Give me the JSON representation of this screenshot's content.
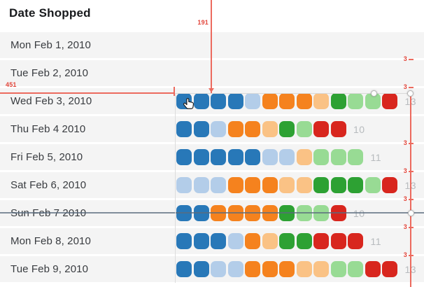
{
  "header": {
    "title": "Date Shopped"
  },
  "colors": {
    "dark_blue": "#2878b8",
    "light_blue": "#b3cde9",
    "orange": "#f5821e",
    "light_orange": "#fac285",
    "green": "#2da133",
    "light_green": "#98db94",
    "red": "#d8261e",
    "row_bg": "#f4f4f4",
    "count_text": "#b7bbbe",
    "overlay_red": "#ec6a5e",
    "strike_line": "#5a6b7d"
  },
  "rows": [
    {
      "date": "Mon Feb 1, 2010",
      "squares": [],
      "count": "",
      "struck": false
    },
    {
      "date": "Tue Feb 2, 2010",
      "squares": [],
      "count": "",
      "struck": false
    },
    {
      "date": "Wed Feb 3, 2010",
      "squares": [
        "dark_blue",
        "dark_blue",
        "dark_blue",
        "dark_blue",
        "light_blue",
        "orange",
        "orange",
        "orange",
        "light_orange",
        "green",
        "light_green",
        "light_green",
        "red"
      ],
      "count": "13",
      "struck": false
    },
    {
      "date": "Thu Feb 4 2010",
      "squares": [
        "dark_blue",
        "dark_blue",
        "light_blue",
        "orange",
        "orange",
        "light_orange",
        "green",
        "light_green",
        "red",
        "red"
      ],
      "count": "10",
      "struck": false
    },
    {
      "date": "Fri Feb 5, 2010",
      "squares": [
        "dark_blue",
        "dark_blue",
        "dark_blue",
        "dark_blue",
        "dark_blue",
        "light_blue",
        "light_blue",
        "light_orange",
        "light_green",
        "light_green",
        "light_green"
      ],
      "count": "11",
      "struck": false
    },
    {
      "date": "Sat Feb 6, 2010",
      "squares": [
        "light_blue",
        "light_blue",
        "light_blue",
        "orange",
        "orange",
        "orange",
        "light_orange",
        "light_orange",
        "green",
        "green",
        "green",
        "light_green",
        "red"
      ],
      "count": "13",
      "struck": false
    },
    {
      "date": "Sun Feb 7 2010",
      "squares": [
        "dark_blue",
        "dark_blue",
        "orange",
        "orange",
        "orange",
        "orange",
        "green",
        "light_green",
        "light_green",
        "red"
      ],
      "count": "10",
      "struck": true
    },
    {
      "date": "Mon Feb 8, 2010",
      "squares": [
        "dark_blue",
        "dark_blue",
        "dark_blue",
        "light_blue",
        "orange",
        "light_orange",
        "green",
        "green",
        "red",
        "red",
        "red"
      ],
      "count": "11",
      "struck": false
    },
    {
      "date": "Tue Feb 9, 2010",
      "squares": [
        "dark_blue",
        "dark_blue",
        "light_blue",
        "light_blue",
        "orange",
        "orange",
        "orange",
        "light_orange",
        "light_orange",
        "light_green",
        "light_green",
        "red",
        "red"
      ],
      "count": "13",
      "struck": false
    }
  ],
  "overlay": {
    "top_measure": "191",
    "left_measure": "451",
    "gap_measures": [
      {
        "label": "3",
        "after_row": 0
      },
      {
        "label": "3",
        "after_row": 1
      },
      {
        "label": "3",
        "after_row": 3
      },
      {
        "label": "3",
        "after_row": 4
      },
      {
        "label": "3",
        "after_row": 5
      },
      {
        "label": "3",
        "after_row": 6
      },
      {
        "label": "3",
        "after_row": 7
      }
    ]
  }
}
